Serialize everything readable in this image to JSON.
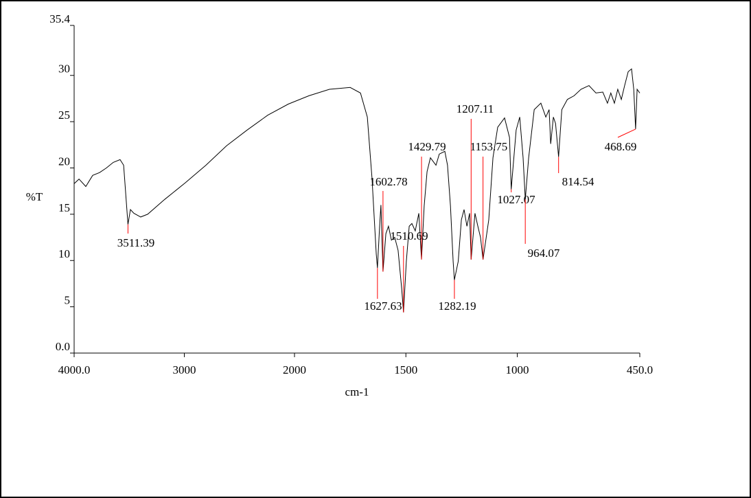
{
  "chart_data": {
    "type": "line",
    "xlabel": "cm-1",
    "ylabel": "%T",
    "color": "#000000",
    "annotation_color": "#ff0000",
    "xlim": [
      4000,
      450
    ],
    "ylim": [
      0,
      35.4
    ],
    "xticks": [
      {
        "value": 4000,
        "label": "4000.0"
      },
      3000,
      2000,
      1500,
      1000,
      {
        "value": 450,
        "label": "450.0"
      }
    ],
    "yticks": [
      {
        "value": 0,
        "label": "0.0"
      },
      5,
      10,
      15,
      20,
      25,
      30,
      35.4
    ],
    "x": [
      4000,
      3956,
      3894,
      3832,
      3769,
      3707,
      3645,
      3583,
      3551,
      3511.39,
      3489,
      3458,
      3396,
      3333,
      3178,
      2991,
      2804,
      2617,
      2430,
      2243,
      2056,
      1935,
      1843,
      1750,
      1704,
      1673,
      1652,
      1633,
      1627.63,
      1618,
      1612,
      1602.78,
      1590,
      1578,
      1565,
      1550,
      1535,
      1519,
      1510.69,
      1498,
      1485,
      1473,
      1458,
      1442,
      1429.79,
      1418,
      1405,
      1390,
      1365,
      1350,
      1325,
      1313,
      1300,
      1288,
      1282.19,
      1265,
      1251,
      1239,
      1226,
      1214,
      1207.11,
      1190,
      1177,
      1165,
      1153.75,
      1128,
      1109,
      1088,
      1057,
      1035,
      1027.07,
      1005,
      989,
      974,
      964.07,
      949,
      924,
      894,
      872,
      857,
      850,
      838,
      828,
      814.54,
      800,
      775,
      745,
      714,
      678,
      647,
      616,
      595,
      580,
      564,
      549,
      533,
      518,
      502,
      487,
      477,
      468.69,
      462,
      450
    ],
    "values": [
      18.3,
      18.8,
      18.0,
      19.2,
      19.5,
      20.0,
      20.6,
      20.9,
      20.3,
      13.9,
      15.5,
      15.1,
      14.7,
      15.0,
      16.6,
      18.4,
      20.3,
      22.4,
      24.1,
      25.7,
      26.9,
      27.8,
      28.5,
      28.7,
      28.1,
      25.5,
      18.9,
      10.7,
      9.2,
      13.7,
      16.0,
      8.8,
      12.9,
      13.7,
      12.2,
      12.5,
      11.1,
      7.0,
      4.4,
      9.9,
      13.7,
      14.0,
      13.2,
      15.1,
      10.1,
      15.9,
      19.6,
      21.1,
      20.3,
      21.5,
      21.8,
      20.3,
      15.9,
      9.9,
      7.9,
      9.9,
      14.4,
      15.5,
      13.7,
      15.1,
      10.1,
      15.1,
      13.7,
      12.5,
      10.1,
      14.4,
      21.1,
      24.4,
      25.4,
      23.3,
      17.7,
      24.1,
      25.5,
      21.1,
      16.6,
      21.1,
      26.3,
      27.0,
      25.5,
      26.3,
      22.6,
      25.5,
      24.8,
      21.2,
      26.3,
      27.4,
      27.8,
      28.5,
      28.9,
      28.1,
      28.2,
      27.0,
      28.1,
      27.0,
      28.5,
      27.4,
      28.9,
      30.4,
      30.7,
      28.5,
      24.2,
      28.5,
      28.1
    ],
    "peaks": [
      3511.39,
      1627.63,
      1602.78,
      1510.69,
      1429.79,
      1282.19,
      1207.11,
      1153.75,
      1027.07,
      964.07,
      814.54,
      468.69
    ]
  }
}
